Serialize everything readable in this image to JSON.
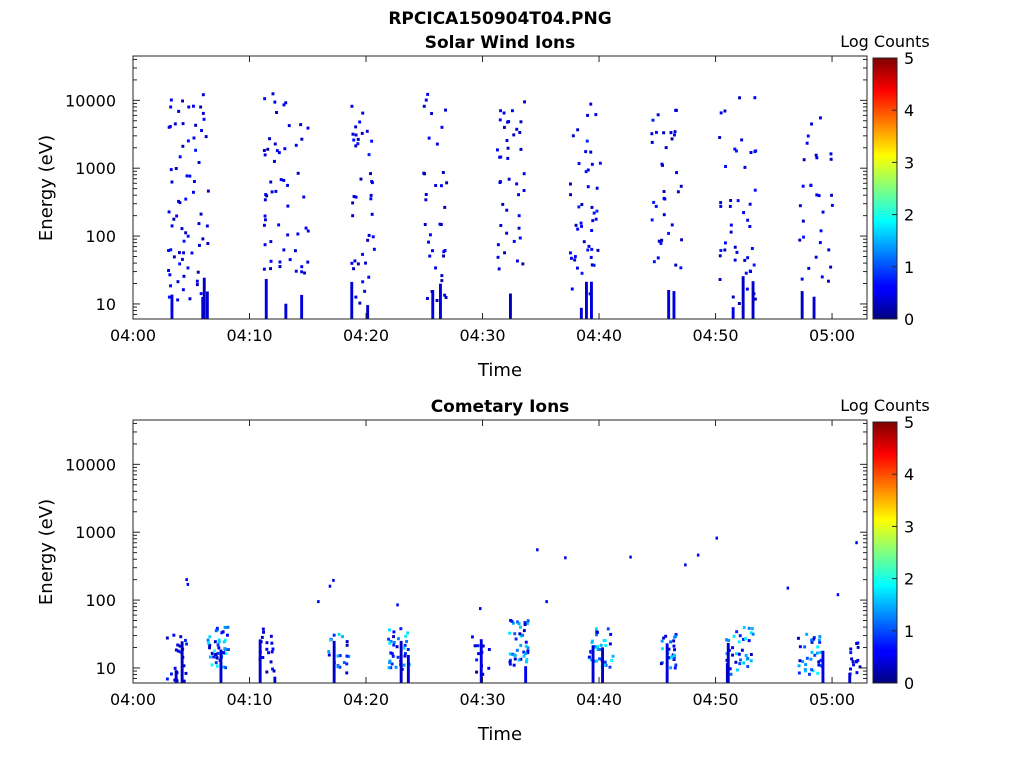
{
  "figure": {
    "filename": "RPCICA150904T04.PNG"
  },
  "chart_data": [
    {
      "type": "heatmap",
      "title": "Solar Wind Ions",
      "xlabel": "Time",
      "ylabel": "Energy (eV)",
      "x_ticks": [
        "04:00",
        "04:10",
        "04:20",
        "04:30",
        "04:40",
        "04:50",
        "05:00"
      ],
      "xlim": [
        "04:00",
        "05:03"
      ],
      "y_ticks": [
        "10",
        "100",
        "1000",
        "10000"
      ],
      "ylim": [
        6,
        45000
      ],
      "yscale": "log",
      "colorbar": {
        "label": "Log Counts",
        "ticks": [
          "0",
          "1",
          "2",
          "3",
          "4",
          "5"
        ],
        "range": [
          0,
          5
        ],
        "colormap": "jet"
      },
      "clusters": [
        {
          "t": 4.7,
          "spread": 1.8,
          "e_lo": 1.0,
          "e_hi": 4.1,
          "n": 70,
          "low_bars": 4,
          "c_max": 0.5
        },
        {
          "t": 13.0,
          "spread": 2.0,
          "e_lo": 1.3,
          "e_hi": 4.1,
          "n": 55,
          "low_bars": 3,
          "c_max": 0.4
        },
        {
          "t": 19.6,
          "spread": 1.0,
          "e_lo": 1.0,
          "e_hi": 4.0,
          "n": 40,
          "low_bars": 2,
          "c_max": 0.5
        },
        {
          "t": 25.8,
          "spread": 1.0,
          "e_lo": 1.0,
          "e_hi": 4.1,
          "n": 35,
          "low_bars": 2,
          "c_max": 0.4
        },
        {
          "t": 32.4,
          "spread": 1.3,
          "e_lo": 1.5,
          "e_hi": 4.0,
          "n": 40,
          "low_bars": 1,
          "c_max": 0.4
        },
        {
          "t": 38.7,
          "spread": 1.3,
          "e_lo": 1.0,
          "e_hi": 4.0,
          "n": 45,
          "low_bars": 3,
          "c_max": 0.6
        },
        {
          "t": 45.8,
          "spread": 1.4,
          "e_lo": 1.3,
          "e_hi": 4.0,
          "n": 35,
          "low_bars": 2,
          "c_max": 0.5
        },
        {
          "t": 51.8,
          "spread": 1.6,
          "e_lo": 1.0,
          "e_hi": 4.1,
          "n": 45,
          "low_bars": 3,
          "c_max": 0.5
        },
        {
          "t": 58.5,
          "spread": 1.4,
          "e_lo": 1.3,
          "e_hi": 3.8,
          "n": 30,
          "low_bars": 2,
          "c_max": 0.5
        }
      ]
    },
    {
      "type": "heatmap",
      "title": "Cometary Ions",
      "xlabel": "Time",
      "ylabel": "Energy (eV)",
      "x_ticks": [
        "04:00",
        "04:10",
        "04:20",
        "04:30",
        "04:40",
        "04:50",
        "05:00"
      ],
      "xlim": [
        "04:00",
        "05:03"
      ],
      "y_ticks": [
        "10",
        "100",
        "1000",
        "10000"
      ],
      "ylim": [
        6,
        45000
      ],
      "yscale": "log",
      "colorbar": {
        "label": "Log Counts",
        "ticks": [
          "0",
          "1",
          "2",
          "3",
          "4",
          "5"
        ],
        "range": [
          0,
          5
        ],
        "colormap": "jet"
      },
      "clusters": [
        {
          "t": 3.6,
          "spread": 0.9,
          "e_lo": 0.8,
          "e_hi": 1.5,
          "n": 22,
          "low_bars": 2,
          "c_max": 0.6
        },
        {
          "t": 7.2,
          "spread": 0.9,
          "e_lo": 1.0,
          "e_hi": 1.6,
          "n": 45,
          "low_bars": 1,
          "c_max": 1.8
        },
        {
          "t": 11.3,
          "spread": 0.8,
          "e_lo": 0.9,
          "e_hi": 1.6,
          "n": 18,
          "low_bars": 2,
          "c_max": 0.5
        },
        {
          "t": 17.5,
          "spread": 0.9,
          "e_lo": 0.9,
          "e_hi": 1.5,
          "n": 20,
          "low_bars": 1,
          "c_max": 1.5
        },
        {
          "t": 22.7,
          "spread": 0.9,
          "e_lo": 0.9,
          "e_hi": 1.6,
          "n": 35,
          "low_bars": 2,
          "c_max": 1.6
        },
        {
          "t": 29.8,
          "spread": 0.8,
          "e_lo": 0.9,
          "e_hi": 1.6,
          "n": 12,
          "low_bars": 1,
          "c_max": 0.6
        },
        {
          "t": 33.0,
          "spread": 0.8,
          "e_lo": 1.0,
          "e_hi": 1.7,
          "n": 40,
          "low_bars": 1,
          "c_max": 1.7
        },
        {
          "t": 40.0,
          "spread": 1.1,
          "e_lo": 1.0,
          "e_hi": 1.6,
          "n": 35,
          "low_bars": 2,
          "c_max": 1.8
        },
        {
          "t": 45.8,
          "spread": 0.7,
          "e_lo": 0.9,
          "e_hi": 1.5,
          "n": 25,
          "low_bars": 1,
          "c_max": 1.6
        },
        {
          "t": 52.0,
          "spread": 1.2,
          "e_lo": 0.9,
          "e_hi": 1.6,
          "n": 35,
          "low_bars": 2,
          "c_max": 1.7
        },
        {
          "t": 58.0,
          "spread": 1.1,
          "e_lo": 0.9,
          "e_hi": 1.5,
          "n": 35,
          "low_bars": 1,
          "c_max": 1.6
        },
        {
          "t": 61.8,
          "spread": 0.5,
          "e_lo": 0.9,
          "e_hi": 1.4,
          "n": 15,
          "low_bars": 1,
          "c_max": 0.7
        }
      ],
      "sparse_points": [
        {
          "t": 4.5,
          "e": 200,
          "c": 0.3
        },
        {
          "t": 4.6,
          "e": 170,
          "c": 0.3
        },
        {
          "t": 15.8,
          "e": 95,
          "c": 0.3
        },
        {
          "t": 16.8,
          "e": 160,
          "c": 0.3
        },
        {
          "t": 17.1,
          "e": 195,
          "c": 0.3
        },
        {
          "t": 22.6,
          "e": 85,
          "c": 0.3
        },
        {
          "t": 29.7,
          "e": 75,
          "c": 0.3
        },
        {
          "t": 34.6,
          "e": 550,
          "c": 0.3
        },
        {
          "t": 35.4,
          "e": 95,
          "c": 0.3
        },
        {
          "t": 37.0,
          "e": 420,
          "c": 0.3
        },
        {
          "t": 42.6,
          "e": 430,
          "c": 0.3
        },
        {
          "t": 47.3,
          "e": 330,
          "c": 0.3
        },
        {
          "t": 48.4,
          "e": 460,
          "c": 0.3
        },
        {
          "t": 50.0,
          "e": 820,
          "c": 0.3
        },
        {
          "t": 56.1,
          "e": 150,
          "c": 0.3
        },
        {
          "t": 60.4,
          "e": 120,
          "c": 0.3
        },
        {
          "t": 62.0,
          "e": 700,
          "c": 0.3
        }
      ]
    }
  ]
}
